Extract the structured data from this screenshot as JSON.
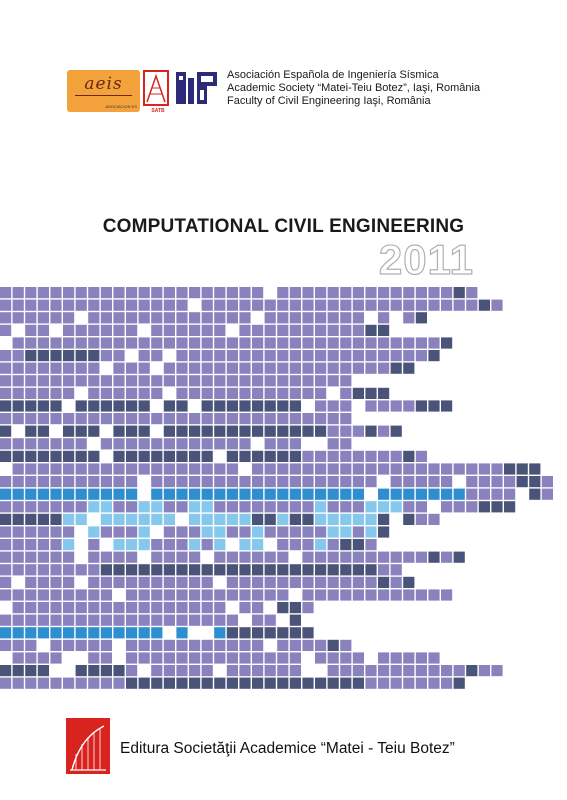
{
  "logos": {
    "aeis": {
      "text": "aeis",
      "subtext": "ASOCIACION ES",
      "color": "#f4a23c"
    },
    "satr": {
      "text": "SATB",
      "color": "#d8231f"
    },
    "faculty": {
      "color": "#2d2a7a"
    }
  },
  "associations": [
    "Asociación Española de Ingeniería Sísmica",
    "Academic Society “Matei-Teiu Botez”, Iaşi, România",
    "Faculty of Civil Engineering Iaşi, România"
  ],
  "title": "COMPUTATIONAL CIVIL ENGINEERING",
  "year": "2011",
  "mosaic": {
    "colors": {
      "purple": "#8a82bd",
      "dark": "#4a5478",
      "blue": "#2d8ed0",
      "light": "#86c8ec"
    }
  },
  "publisher": "Editura Societăţii Academice “Matei - Teiu Botez”"
}
